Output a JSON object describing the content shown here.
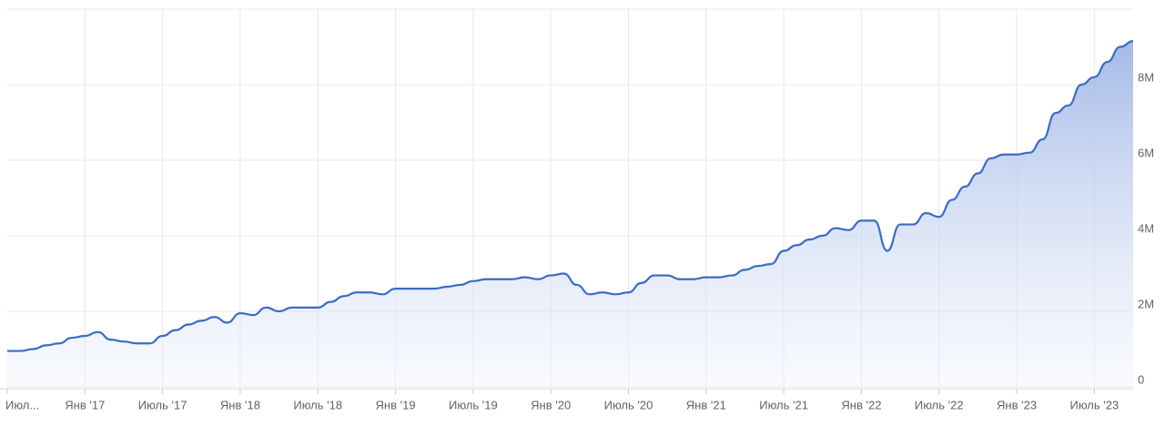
{
  "chart_data": {
    "type": "area",
    "categories": [
      "Июл...",
      null,
      null,
      null,
      null,
      null,
      "Янв '17",
      null,
      null,
      null,
      null,
      null,
      "Июль '17",
      null,
      null,
      null,
      null,
      null,
      "Янв '18",
      null,
      null,
      null,
      null,
      null,
      "Июль '18",
      null,
      null,
      null,
      null,
      null,
      "Янв '19",
      null,
      null,
      null,
      null,
      null,
      "Июль '19",
      null,
      null,
      null,
      null,
      null,
      "Янв '20",
      null,
      null,
      null,
      null,
      null,
      "Июль '20",
      null,
      null,
      null,
      null,
      null,
      "Янв '21",
      null,
      null,
      null,
      null,
      null,
      "Июль '21",
      null,
      null,
      null,
      null,
      null,
      "Янв '22",
      null,
      null,
      null,
      null,
      null,
      "Июль '22",
      null,
      null,
      null,
      null,
      null,
      "Янв '23",
      null,
      null,
      null,
      null,
      null,
      "Июль '23",
      null,
      null,
      null
    ],
    "series": [
      {
        "color": "#3b6cc4",
        "values": [
          950000,
          950000,
          1000000,
          1100000,
          1150000,
          1300000,
          1350000,
          1450000,
          1250000,
          1200000,
          1150000,
          1150000,
          1350000,
          1500000,
          1650000,
          1750000,
          1850000,
          1700000,
          1950000,
          1900000,
          2100000,
          2000000,
          2100000,
          2100000,
          2100000,
          2250000,
          2400000,
          2500000,
          2500000,
          2450000,
          2600000,
          2600000,
          2600000,
          2600000,
          2650000,
          2700000,
          2800000,
          2850000,
          2850000,
          2850000,
          2900000,
          2850000,
          2950000,
          3000000,
          2700000,
          2450000,
          2500000,
          2450000,
          2500000,
          2750000,
          2950000,
          2950000,
          2850000,
          2850000,
          2900000,
          2900000,
          2950000,
          3100000,
          3200000,
          3250000,
          3600000,
          3750000,
          3900000,
          4000000,
          4200000,
          4150000,
          4400000,
          4400000,
          3600000,
          4300000,
          4300000,
          4600000,
          4500000,
          4950000,
          5300000,
          5650000,
          6050000,
          6150000,
          6150000,
          6200000,
          6550000,
          7250000,
          7450000,
          8000000,
          8200000,
          8600000,
          9000000,
          9150000
        ]
      }
    ],
    "ylim": [
      0,
      10000000
    ],
    "yticks": [
      0,
      {
        "value": 2000000,
        "label": "2M"
      },
      {
        "value": 4000000,
        "label": "4M"
      },
      {
        "value": 6000000,
        "label": "6M"
      },
      {
        "value": 8000000,
        "label": "8M"
      }
    ],
    "grid": true
  }
}
